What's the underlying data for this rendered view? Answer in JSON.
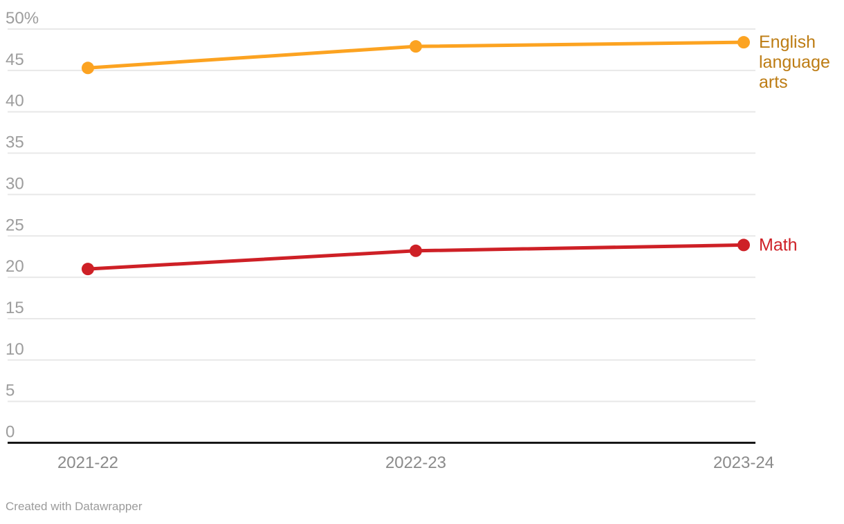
{
  "footer": {
    "credit": "Created with Datawrapper"
  },
  "chart_data": {
    "type": "line",
    "categories": [
      "2021-22",
      "2022-23",
      "2023-24"
    ],
    "series": [
      {
        "name": "English language arts",
        "label_lines": [
          "English",
          "language",
          "arts"
        ],
        "values": [
          45.3,
          47.9,
          48.4
        ],
        "color": "#FCA321",
        "label_color": "#BD7C13"
      },
      {
        "name": "Math",
        "label_lines": [
          "Math"
        ],
        "values": [
          21.0,
          23.2,
          23.9
        ],
        "color": "#CE2026",
        "label_color": "#CE2026"
      }
    ],
    "title": "",
    "xlabel": "",
    "ylabel": "",
    "ylim": [
      0,
      50
    ],
    "grid": "horizontal",
    "legend_position": "right-of-line-end",
    "y_ticks": [
      {
        "value": 50,
        "label": "50%"
      },
      {
        "value": 45,
        "label": "45"
      },
      {
        "value": 40,
        "label": "40"
      },
      {
        "value": 35,
        "label": "35"
      },
      {
        "value": 30,
        "label": "30"
      },
      {
        "value": 25,
        "label": "25"
      },
      {
        "value": 20,
        "label": "20"
      },
      {
        "value": 15,
        "label": "15"
      },
      {
        "value": 10,
        "label": "10"
      },
      {
        "value": 5,
        "label": "5"
      },
      {
        "value": 0,
        "label": "0"
      }
    ],
    "colors": {
      "grid": "#E8E8E8",
      "axis": "#171717",
      "y_tick_label": "#9D9D9D",
      "x_tick_label": "#8A8A8A",
      "footer_text": "#9B9B9B",
      "background": "#FFFFFF"
    }
  }
}
